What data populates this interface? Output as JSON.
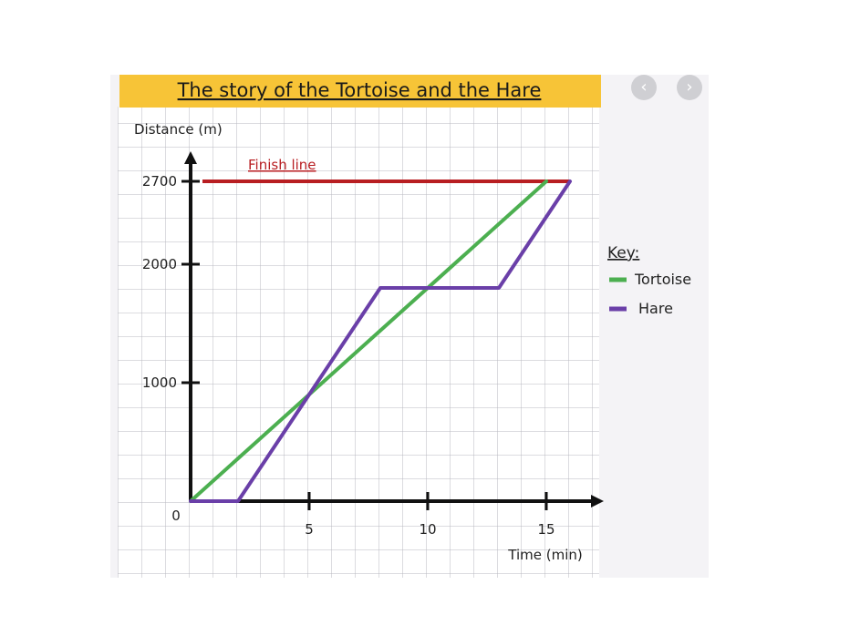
{
  "nav": {
    "prev_label": "‹",
    "next_label": "›"
  },
  "chart_data": {
    "type": "line",
    "title": "The story of the Tortoise and the Hare",
    "xlabel": "Time (min)",
    "ylabel": "Distance (m)",
    "xlim": [
      0,
      17
    ],
    "ylim": [
      0,
      3000
    ],
    "x_ticks": [
      5,
      10,
      15
    ],
    "x_tick_labels": [
      "5",
      "10",
      "15"
    ],
    "y_ticks": [
      0,
      1000,
      2000,
      2700
    ],
    "y_tick_labels": [
      "0",
      "1000",
      "2000",
      "2700"
    ],
    "grid": true,
    "legend": {
      "title": "Key:",
      "placement": "right"
    },
    "annotations": [
      {
        "text": "Finish line",
        "y": 2700,
        "color": "#b81e22"
      }
    ],
    "series": [
      {
        "name": "Tortoise",
        "color": "#4caf50",
        "points": [
          [
            0,
            0
          ],
          [
            15,
            2700
          ]
        ]
      },
      {
        "name": "Hare",
        "color": "#6a3fa8",
        "points": [
          [
            0,
            0
          ],
          [
            2,
            0
          ],
          [
            8,
            1800
          ],
          [
            13,
            1800
          ],
          [
            16,
            2700
          ]
        ]
      }
    ],
    "finish_line": {
      "x": [
        0.5,
        16
      ],
      "y": 2700,
      "color": "#b81e22"
    }
  }
}
